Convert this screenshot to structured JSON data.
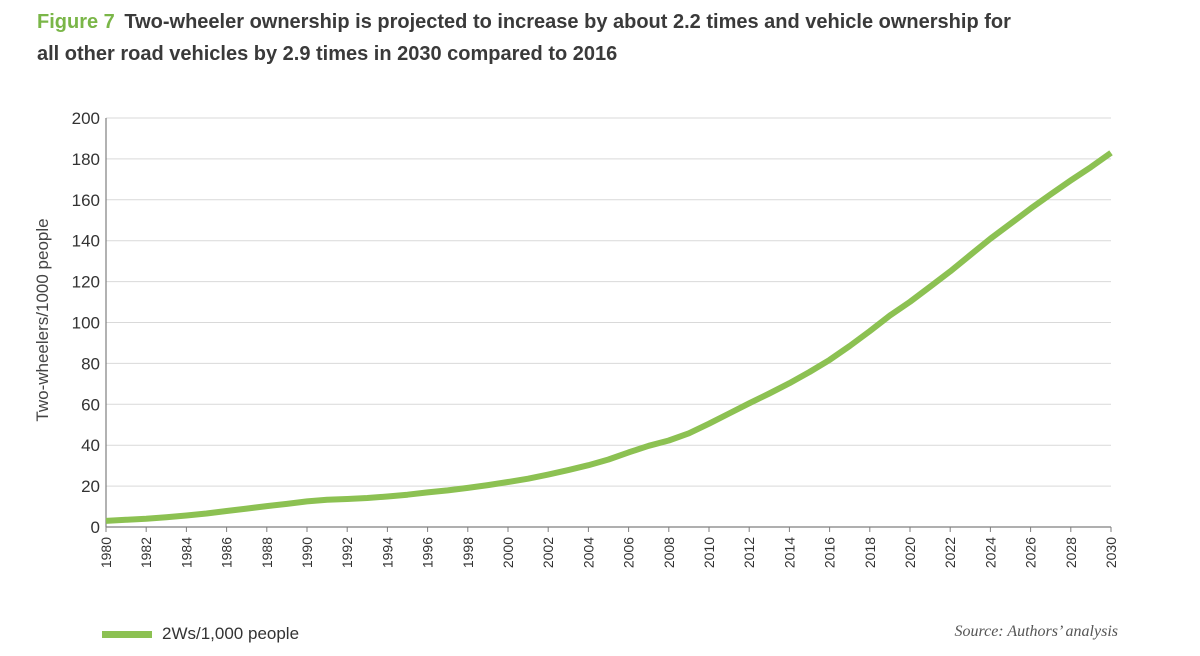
{
  "figure": {
    "number": "Figure 7",
    "title": "Two-wheeler ownership is projected to increase by about 2.2 times and vehicle ownership for all other road vehicles by 2.9 times in 2030 compared to 2016",
    "source": "Source: Authors’ analysis"
  },
  "chart_data": {
    "type": "line",
    "title": "Two-wheeler ownership is projected to increase by about 2.2 times and vehicle ownership for all other road vehicles by 2.9 times in 2030 compared to 2016",
    "xlabel": "",
    "ylabel": "Two-wheelers/1000 people",
    "xlim": [
      1980,
      2030
    ],
    "ylim": [
      0,
      200
    ],
    "x_ticks": [
      "1980",
      "1982",
      "1984",
      "1986",
      "1988",
      "1990",
      "1992",
      "1994",
      "1996",
      "1998",
      "2000",
      "2002",
      "2004",
      "2006",
      "2008",
      "2010",
      "2012",
      "2014",
      "2016",
      "2018",
      "2020",
      "2022",
      "2024",
      "2026",
      "2028",
      "2030"
    ],
    "y_ticks": [
      0,
      20,
      40,
      60,
      80,
      100,
      120,
      140,
      160,
      180,
      200
    ],
    "grid": "horizontal",
    "legend_position": "bottom-left",
    "colors": {
      "line": "#8cc152",
      "grid": "#d9d9d9",
      "axis": "#7f7f7f",
      "figure_label": "#7ab648"
    },
    "series": [
      {
        "name": "2Ws/1,000 people",
        "x": [
          1980,
          1981,
          1982,
          1983,
          1984,
          1985,
          1986,
          1987,
          1988,
          1989,
          1990,
          1991,
          1992,
          1993,
          1994,
          1995,
          1996,
          1997,
          1998,
          1999,
          2000,
          2001,
          2002,
          2003,
          2004,
          2005,
          2006,
          2007,
          2008,
          2009,
          2010,
          2011,
          2012,
          2013,
          2014,
          2015,
          2016,
          2017,
          2018,
          2019,
          2020,
          2021,
          2022,
          2023,
          2024,
          2025,
          2026,
          2027,
          2028,
          2029,
          2030
        ],
        "values": [
          3,
          3.5,
          4,
          4.8,
          5.6,
          6.6,
          7.8,
          9,
          10.2,
          11.3,
          12.5,
          13.3,
          13.7,
          14.2,
          14.9,
          15.8,
          16.9,
          17.9,
          19.1,
          20.5,
          22,
          23.6,
          25.6,
          27.8,
          30.2,
          33,
          36.5,
          39.7,
          42.3,
          45.8,
          50.5,
          55.5,
          60.5,
          65.3,
          70.3,
          75.8,
          81.7,
          88.5,
          95.8,
          103.4,
          110.1,
          117.5,
          125,
          133,
          141,
          148.3,
          155.7,
          162.7,
          169.5,
          176,
          183
        ]
      }
    ]
  }
}
